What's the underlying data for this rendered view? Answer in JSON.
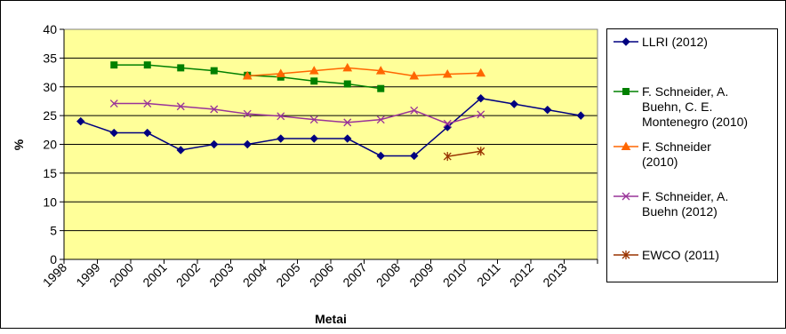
{
  "chart_data": {
    "type": "line",
    "title": "",
    "xlabel": "Metai",
    "ylabel": "%",
    "ylim": [
      0,
      40
    ],
    "yticks": [
      0,
      5,
      10,
      15,
      20,
      25,
      30,
      35,
      40
    ],
    "xticks": [
      "1998",
      "1999",
      "2000",
      "2001",
      "2002",
      "2003",
      "2004",
      "2005",
      "2006",
      "2007",
      "2008",
      "2009",
      "2010",
      "2011",
      "2012",
      "2013"
    ],
    "grid": "horizontal",
    "legend_position": "right",
    "plot_background": "#ffff99",
    "series": [
      {
        "name": "LLRI (2012)",
        "color": "#000080",
        "marker": "diamond",
        "points": [
          {
            "x": 1998.5,
            "y": 24
          },
          {
            "x": 1999.5,
            "y": 22
          },
          {
            "x": 2000.5,
            "y": 22
          },
          {
            "x": 2001.5,
            "y": 19
          },
          {
            "x": 2002.5,
            "y": 20
          },
          {
            "x": 2003.5,
            "y": 20
          },
          {
            "x": 2004.5,
            "y": 21
          },
          {
            "x": 2005.5,
            "y": 21
          },
          {
            "x": 2006.5,
            "y": 21
          },
          {
            "x": 2007.5,
            "y": 18
          },
          {
            "x": 2008.5,
            "y": 18
          },
          {
            "x": 2009.5,
            "y": 23
          },
          {
            "x": 2010.5,
            "y": 28
          },
          {
            "x": 2011.5,
            "y": 27
          },
          {
            "x": 2012.5,
            "y": 26
          },
          {
            "x": 2013.5,
            "y": 25
          }
        ]
      },
      {
        "name": "F. Schneider, A. Buehn, C. E. Montenegro (2010)",
        "legend_lines": [
          "F. Schneider, A.",
          "Buehn, C. E.",
          "Montenegro (2010)"
        ],
        "color": "#008000",
        "marker": "square",
        "points": [
          {
            "x": 1999.5,
            "y": 33.8
          },
          {
            "x": 2000.5,
            "y": 33.8
          },
          {
            "x": 2001.5,
            "y": 33.3
          },
          {
            "x": 2002.5,
            "y": 32.8
          },
          {
            "x": 2003.5,
            "y": 32.0
          },
          {
            "x": 2004.5,
            "y": 31.7
          },
          {
            "x": 2005.5,
            "y": 31.0
          },
          {
            "x": 2006.5,
            "y": 30.5
          },
          {
            "x": 2007.5,
            "y": 29.7
          }
        ]
      },
      {
        "name": "F. Schneider (2010)",
        "legend_lines": [
          "F. Schneider",
          "(2010)"
        ],
        "color": "#ff6600",
        "marker": "triangle",
        "points": [
          {
            "x": 2003.5,
            "y": 31.9
          },
          {
            "x": 2004.5,
            "y": 32.3
          },
          {
            "x": 2005.5,
            "y": 32.8
          },
          {
            "x": 2006.5,
            "y": 33.3
          },
          {
            "x": 2007.5,
            "y": 32.8
          },
          {
            "x": 2008.5,
            "y": 31.9
          },
          {
            "x": 2009.5,
            "y": 32.2
          },
          {
            "x": 2010.5,
            "y": 32.4
          }
        ]
      },
      {
        "name": "F. Schneider, A. Buehn (2012)",
        "legend_lines": [
          "F. Schneider, A.",
          "Buehn (2012)"
        ],
        "color": "#993399",
        "marker": "x",
        "points": [
          {
            "x": 1999.5,
            "y": 27.1
          },
          {
            "x": 2000.5,
            "y": 27.1
          },
          {
            "x": 2001.5,
            "y": 26.6
          },
          {
            "x": 2002.5,
            "y": 26.1
          },
          {
            "x": 2003.5,
            "y": 25.3
          },
          {
            "x": 2004.5,
            "y": 24.9
          },
          {
            "x": 2005.5,
            "y": 24.3
          },
          {
            "x": 2006.5,
            "y": 23.8
          },
          {
            "x": 2007.5,
            "y": 24.3
          },
          {
            "x": 2008.5,
            "y": 25.9
          },
          {
            "x": 2009.5,
            "y": 23.6
          },
          {
            "x": 2010.5,
            "y": 25.2
          }
        ]
      },
      {
        "name": "EWCO (2011)",
        "color": "#993300",
        "marker": "star",
        "points": [
          {
            "x": 2009.5,
            "y": 17.9
          },
          {
            "x": 2010.5,
            "y": 18.8
          }
        ]
      }
    ]
  }
}
